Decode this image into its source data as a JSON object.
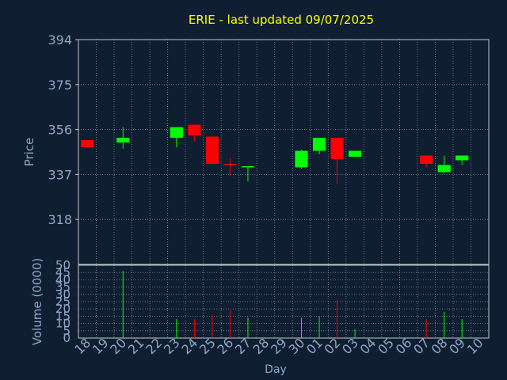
{
  "title": "ERIE - last updated 09/07/2025",
  "colors": {
    "background": "#0f1e30",
    "plot_bg": "#0f1e30",
    "grid": "#7a8a9a",
    "axis_text": "#8fa8c8",
    "title": "#ffff00",
    "up": "#00ff00",
    "down": "#ff0000",
    "frame": "#c0c8d0"
  },
  "chart_data": [
    {
      "type": "candlestick",
      "ylabel": "Price",
      "ylim": [
        299,
        394
      ],
      "yticks": [
        318,
        337,
        356,
        375,
        394
      ],
      "grid": true,
      "candles": [
        {
          "day": "18",
          "open": 351.5,
          "close": 348.5,
          "high": 351.5,
          "low": 348.5
        },
        {
          "day": "20",
          "open": 350.5,
          "close": 352.5,
          "high": 357,
          "low": 348
        },
        {
          "day": "23",
          "open": 352.5,
          "close": 357,
          "high": 357,
          "low": 348.5
        },
        {
          "day": "24",
          "open": 358,
          "close": 353.5,
          "high": 358,
          "low": 351
        },
        {
          "day": "25",
          "open": 353,
          "close": 341.5,
          "high": 353,
          "low": 341.5
        },
        {
          "day": "26",
          "open": 341.5,
          "close": 341,
          "high": 344,
          "low": 336.5
        },
        {
          "day": "27",
          "open": 340,
          "close": 340.5,
          "high": 340.5,
          "low": 334
        },
        {
          "day": "30",
          "open": 340,
          "close": 347,
          "high": 347.5,
          "low": 339.5
        },
        {
          "day": "01",
          "open": 347,
          "close": 352.5,
          "high": 352.5,
          "low": 345.5
        },
        {
          "day": "02",
          "open": 352.5,
          "close": 343.5,
          "high": 352.5,
          "low": 333
        },
        {
          "day": "03",
          "open": 344.5,
          "close": 347,
          "high": 347,
          "low": 344.5
        },
        {
          "day": "07",
          "open": 345,
          "close": 341.5,
          "high": 345,
          "low": 340
        },
        {
          "day": "08",
          "open": 338,
          "close": 341,
          "high": 345,
          "low": 337.5
        },
        {
          "day": "09",
          "open": 343,
          "close": 345,
          "high": 345,
          "low": 341
        }
      ]
    },
    {
      "type": "bar",
      "xlabel": "Day",
      "ylabel": "Volume (0000)",
      "ylim": [
        0,
        50
      ],
      "yticks": [
        0,
        5,
        10,
        15,
        20,
        25,
        30,
        35,
        40,
        45,
        50
      ],
      "grid": true,
      "categories": [
        "18",
        "19",
        "20",
        "21",
        "22",
        "23",
        "24",
        "25",
        "26",
        "27",
        "28",
        "29",
        "30",
        "01",
        "02",
        "03",
        "04",
        "05",
        "06",
        "07",
        "08",
        "09",
        "10"
      ],
      "volumes": [
        {
          "day": "20",
          "value": 46,
          "direction": "up"
        },
        {
          "day": "23",
          "value": 13,
          "direction": "up"
        },
        {
          "day": "24",
          "value": 13,
          "direction": "down"
        },
        {
          "day": "25",
          "value": 16,
          "direction": "down"
        },
        {
          "day": "26",
          "value": 19,
          "direction": "down"
        },
        {
          "day": "27",
          "value": 14,
          "direction": "up"
        },
        {
          "day": "30",
          "value": 14,
          "direction": "up"
        },
        {
          "day": "01",
          "value": 15,
          "direction": "up"
        },
        {
          "day": "02",
          "value": 26,
          "direction": "down"
        },
        {
          "day": "03",
          "value": 6,
          "direction": "up"
        },
        {
          "day": "07",
          "value": 13,
          "direction": "down"
        },
        {
          "day": "08",
          "value": 18,
          "direction": "up"
        },
        {
          "day": "09",
          "value": 13,
          "direction": "up"
        }
      ]
    }
  ]
}
